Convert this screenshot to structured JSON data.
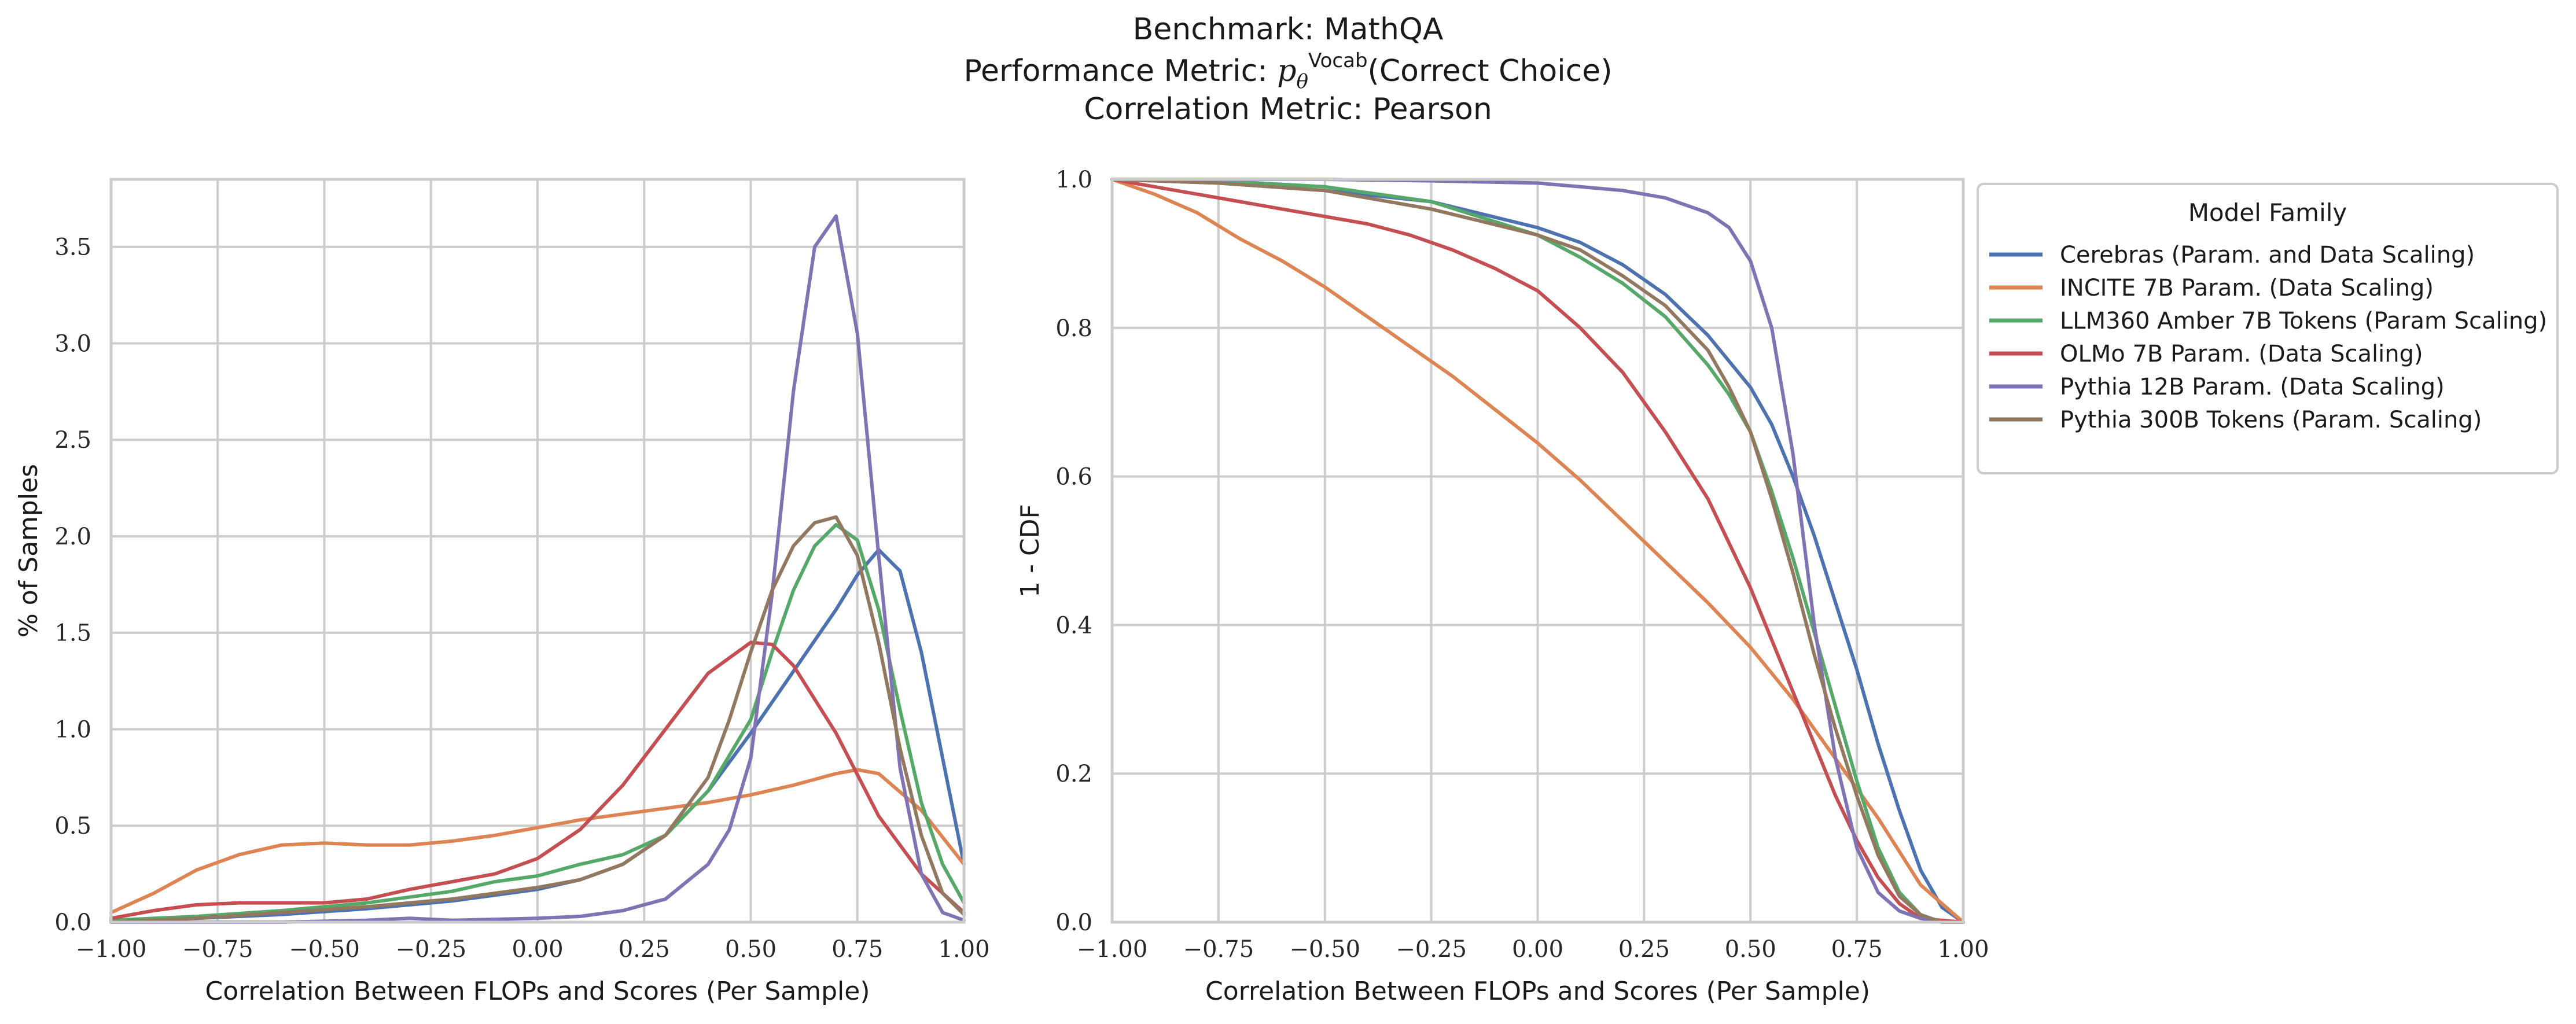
{
  "figure": {
    "title_lines": [
      "Benchmark: MathQA",
      "Performance Metric: p_θ^Vocab(Correct Choice)",
      "Correlation Metric: Pearson"
    ]
  },
  "legend": {
    "title": "Model Family",
    "placement": "outside-right-top",
    "entries": [
      {
        "label": "Cerebras (Param. and Data Scaling)",
        "color": "#4c72b0"
      },
      {
        "label": "INCITE 7B Param. (Data Scaling)",
        "color": "#dd8452"
      },
      {
        "label": "LLM360 Amber 7B Tokens (Param Scaling)",
        "color": "#55a868"
      },
      {
        "label": "OLMo 7B Param. (Data Scaling)",
        "color": "#c44e52"
      },
      {
        "label": "Pythia 12B Param. (Data Scaling)",
        "color": "#8172b3"
      },
      {
        "label": "Pythia 300B Tokens (Param. Scaling)",
        "color": "#937860"
      }
    ]
  },
  "chart_data": [
    {
      "type": "line",
      "subtype": "kde",
      "xlabel": "Correlation Between FLOPs and Scores (Per Sample)",
      "ylabel": "% of Samples",
      "xlim": [
        -1.0,
        1.0
      ],
      "ylim": [
        0,
        3.85
      ],
      "xticks": [
        "−1.00",
        "−0.75",
        "−0.50",
        "−0.25",
        "0.00",
        "0.25",
        "0.50",
        "0.75",
        "1.00"
      ],
      "xtick_values": [
        -1,
        -0.75,
        -0.5,
        -0.25,
        0,
        0.25,
        0.5,
        0.75,
        1
      ],
      "yticks": [
        "0.0",
        "0.5",
        "1.0",
        "1.5",
        "2.0",
        "2.5",
        "3.0",
        "3.5"
      ],
      "ytick_values": [
        0,
        0.5,
        1,
        1.5,
        2,
        2.5,
        3,
        3.5
      ],
      "grid": true,
      "series": [
        {
          "name": "Cerebras (Param. and Data Scaling)",
          "color": "#4c72b0",
          "x": [
            -1,
            -0.8,
            -0.6,
            -0.4,
            -0.2,
            0,
            0.1,
            0.2,
            0.3,
            0.4,
            0.5,
            0.6,
            0.7,
            0.75,
            0.8,
            0.85,
            0.9,
            0.95,
            1.0
          ],
          "y": [
            0.01,
            0.02,
            0.04,
            0.07,
            0.11,
            0.17,
            0.22,
            0.3,
            0.45,
            0.68,
            0.98,
            1.3,
            1.62,
            1.8,
            1.93,
            1.82,
            1.4,
            0.85,
            0.3
          ]
        },
        {
          "name": "INCITE 7B Param. (Data Scaling)",
          "color": "#dd8452",
          "x": [
            -1,
            -0.9,
            -0.8,
            -0.7,
            -0.6,
            -0.5,
            -0.4,
            -0.3,
            -0.2,
            -0.1,
            0,
            0.1,
            0.2,
            0.3,
            0.4,
            0.5,
            0.6,
            0.7,
            0.75,
            0.8,
            0.9,
            1.0
          ],
          "y": [
            0.05,
            0.15,
            0.27,
            0.35,
            0.4,
            0.41,
            0.4,
            0.4,
            0.42,
            0.45,
            0.49,
            0.53,
            0.56,
            0.59,
            0.62,
            0.66,
            0.71,
            0.77,
            0.79,
            0.77,
            0.58,
            0.3
          ]
        },
        {
          "name": "LLM360 Amber 7B Tokens (Param Scaling)",
          "color": "#55a868",
          "x": [
            -1,
            -0.8,
            -0.6,
            -0.4,
            -0.2,
            -0.1,
            0,
            0.1,
            0.2,
            0.3,
            0.4,
            0.5,
            0.55,
            0.6,
            0.65,
            0.7,
            0.75,
            0.8,
            0.85,
            0.9,
            0.95,
            1.0
          ],
          "y": [
            0.01,
            0.03,
            0.06,
            0.1,
            0.16,
            0.21,
            0.24,
            0.3,
            0.35,
            0.45,
            0.68,
            1.05,
            1.4,
            1.72,
            1.95,
            2.06,
            1.98,
            1.62,
            1.1,
            0.62,
            0.3,
            0.1
          ]
        },
        {
          "name": "OLMo 7B Param. (Data Scaling)",
          "color": "#c44e52",
          "x": [
            -1,
            -0.9,
            -0.8,
            -0.7,
            -0.6,
            -0.5,
            -0.4,
            -0.3,
            -0.2,
            -0.1,
            0,
            0.1,
            0.2,
            0.3,
            0.4,
            0.5,
            0.55,
            0.6,
            0.7,
            0.8,
            0.9,
            1.0
          ],
          "y": [
            0.02,
            0.06,
            0.09,
            0.1,
            0.1,
            0.1,
            0.12,
            0.17,
            0.21,
            0.25,
            0.33,
            0.48,
            0.71,
            1.0,
            1.29,
            1.45,
            1.44,
            1.33,
            0.98,
            0.55,
            0.25,
            0.05
          ]
        },
        {
          "name": "Pythia 12B Param. (Data Scaling)",
          "color": "#8172b3",
          "x": [
            -1,
            -0.6,
            -0.4,
            -0.3,
            -0.2,
            0,
            0.1,
            0.2,
            0.3,
            0.4,
            0.45,
            0.5,
            0.55,
            0.6,
            0.65,
            0.7,
            0.75,
            0.8,
            0.85,
            0.9,
            0.95,
            1.0
          ],
          "y": [
            0.0,
            0.0,
            0.01,
            0.02,
            0.01,
            0.02,
            0.03,
            0.06,
            0.12,
            0.3,
            0.48,
            0.85,
            1.7,
            2.75,
            3.5,
            3.66,
            3.05,
            1.9,
            0.8,
            0.25,
            0.05,
            0.01
          ]
        },
        {
          "name": "Pythia 300B Tokens (Param. Scaling)",
          "color": "#937860",
          "x": [
            -1,
            -0.8,
            -0.6,
            -0.4,
            -0.2,
            -0.1,
            0,
            0.1,
            0.2,
            0.3,
            0.4,
            0.45,
            0.5,
            0.55,
            0.6,
            0.65,
            0.7,
            0.75,
            0.8,
            0.85,
            0.9,
            0.95,
            1.0
          ],
          "y": [
            0.0,
            0.02,
            0.05,
            0.08,
            0.12,
            0.15,
            0.18,
            0.22,
            0.3,
            0.45,
            0.75,
            1.05,
            1.4,
            1.72,
            1.95,
            2.07,
            2.1,
            1.9,
            1.45,
            0.9,
            0.45,
            0.15,
            0.04
          ]
        }
      ]
    },
    {
      "type": "line",
      "subtype": "survival",
      "xlabel": "Correlation Between FLOPs and Scores (Per Sample)",
      "ylabel": "1 - CDF",
      "xlim": [
        -1.0,
        1.0
      ],
      "ylim": [
        0.0,
        1.0
      ],
      "xticks": [
        "−1.00",
        "−0.75",
        "−0.50",
        "−0.25",
        "0.00",
        "0.25",
        "0.50",
        "0.75",
        "1.00"
      ],
      "xtick_values": [
        -1,
        -0.75,
        -0.5,
        -0.25,
        0,
        0.25,
        0.5,
        0.75,
        1
      ],
      "yticks": [
        "0.0",
        "0.2",
        "0.4",
        "0.6",
        "0.8",
        "1.0"
      ],
      "ytick_values": [
        0,
        0.2,
        0.4,
        0.6,
        0.8,
        1.0
      ],
      "grid": true,
      "series": [
        {
          "name": "Cerebras (Param. and Data Scaling)",
          "color": "#4c72b0",
          "x": [
            -1,
            -0.75,
            -0.5,
            -0.25,
            0,
            0.1,
            0.2,
            0.3,
            0.4,
            0.5,
            0.55,
            0.6,
            0.65,
            0.7,
            0.75,
            0.8,
            0.85,
            0.9,
            0.95,
            1.0
          ],
          "y": [
            1.0,
            0.995,
            0.985,
            0.97,
            0.935,
            0.915,
            0.885,
            0.845,
            0.79,
            0.72,
            0.67,
            0.6,
            0.52,
            0.43,
            0.34,
            0.24,
            0.15,
            0.07,
            0.02,
            0.0
          ]
        },
        {
          "name": "INCITE 7B Param. (Data Scaling)",
          "color": "#dd8452",
          "x": [
            -1,
            -0.9,
            -0.8,
            -0.7,
            -0.6,
            -0.5,
            -0.4,
            -0.3,
            -0.2,
            -0.1,
            0,
            0.1,
            0.2,
            0.3,
            0.4,
            0.5,
            0.6,
            0.7,
            0.8,
            0.9,
            1.0
          ],
          "y": [
            1.0,
            0.98,
            0.955,
            0.92,
            0.89,
            0.855,
            0.815,
            0.775,
            0.735,
            0.69,
            0.645,
            0.595,
            0.54,
            0.485,
            0.43,
            0.37,
            0.3,
            0.22,
            0.14,
            0.05,
            0.0
          ]
        },
        {
          "name": "LLM360 Amber 7B Tokens (Param Scaling)",
          "color": "#55a868",
          "x": [
            -1,
            -0.75,
            -0.5,
            -0.25,
            0,
            0.1,
            0.2,
            0.3,
            0.4,
            0.45,
            0.5,
            0.55,
            0.6,
            0.65,
            0.7,
            0.75,
            0.8,
            0.85,
            0.9,
            0.95,
            1.0
          ],
          "y": [
            1.0,
            0.998,
            0.99,
            0.97,
            0.925,
            0.895,
            0.86,
            0.815,
            0.75,
            0.71,
            0.66,
            0.58,
            0.49,
            0.39,
            0.29,
            0.19,
            0.1,
            0.04,
            0.01,
            0.0,
            0.0
          ]
        },
        {
          "name": "OLMo 7B Param. (Data Scaling)",
          "color": "#c44e52",
          "x": [
            -1,
            -0.9,
            -0.8,
            -0.7,
            -0.6,
            -0.5,
            -0.4,
            -0.3,
            -0.2,
            -0.1,
            0,
            0.1,
            0.2,
            0.3,
            0.4,
            0.45,
            0.5,
            0.55,
            0.6,
            0.65,
            0.7,
            0.75,
            0.8,
            0.85,
            0.9,
            1.0
          ],
          "y": [
            1.0,
            0.99,
            0.98,
            0.97,
            0.96,
            0.95,
            0.94,
            0.925,
            0.905,
            0.88,
            0.85,
            0.8,
            0.74,
            0.66,
            0.57,
            0.51,
            0.45,
            0.38,
            0.31,
            0.24,
            0.17,
            0.11,
            0.06,
            0.025,
            0.005,
            0.0
          ]
        },
        {
          "name": "Pythia 12B Param. (Data Scaling)",
          "color": "#8172b3",
          "x": [
            -1,
            -0.5,
            -0.25,
            0,
            0.1,
            0.2,
            0.3,
            0.4,
            0.45,
            0.5,
            0.55,
            0.6,
            0.65,
            0.7,
            0.75,
            0.8,
            0.85,
            0.9,
            0.95,
            1.0
          ],
          "y": [
            1.0,
            1.0,
            0.998,
            0.995,
            0.99,
            0.985,
            0.975,
            0.955,
            0.935,
            0.89,
            0.8,
            0.63,
            0.4,
            0.22,
            0.1,
            0.04,
            0.015,
            0.005,
            0.0,
            0.0
          ]
        },
        {
          "name": "Pythia 300B Tokens (Param. Scaling)",
          "color": "#937860",
          "x": [
            -1,
            -0.75,
            -0.5,
            -0.25,
            0,
            0.1,
            0.2,
            0.3,
            0.4,
            0.45,
            0.5,
            0.55,
            0.6,
            0.65,
            0.7,
            0.75,
            0.8,
            0.85,
            0.9,
            0.95,
            1.0
          ],
          "y": [
            1.0,
            0.995,
            0.985,
            0.96,
            0.925,
            0.905,
            0.87,
            0.83,
            0.77,
            0.72,
            0.66,
            0.57,
            0.47,
            0.36,
            0.26,
            0.17,
            0.09,
            0.035,
            0.01,
            0.0,
            0.0
          ]
        }
      ]
    }
  ]
}
